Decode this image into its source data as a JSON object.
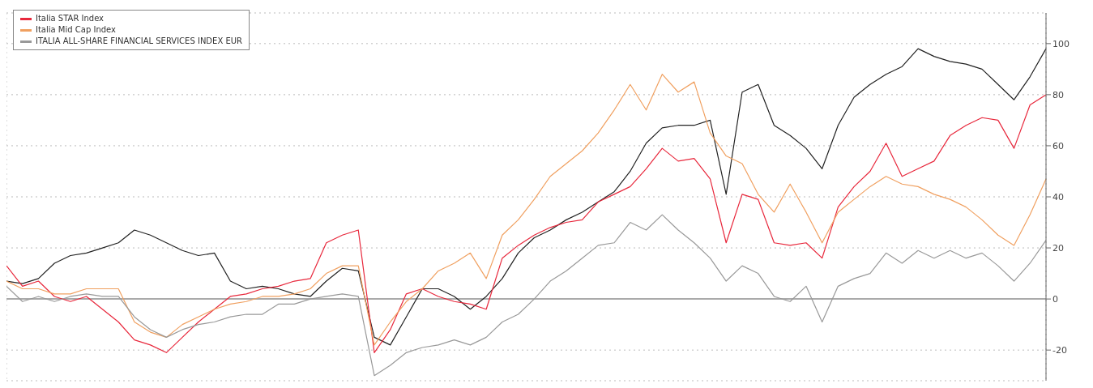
{
  "chart_data": {
    "type": "line",
    "categories": [
      null,
      null,
      null,
      null,
      null,
      null,
      null,
      null,
      null,
      null,
      null,
      null,
      null,
      null,
      null,
      null,
      null,
      null,
      null,
      null,
      null,
      null,
      null,
      null,
      null,
      null,
      null,
      null,
      null,
      null,
      null,
      null,
      null,
      null,
      null,
      null,
      null,
      null,
      null,
      null,
      null,
      null,
      null,
      null,
      null,
      null,
      null,
      null,
      null,
      null,
      null,
      null,
      null,
      null,
      null,
      null,
      null,
      null,
      null,
      null,
      null,
      null,
      null,
      null,
      null,
      null
    ],
    "series": [
      {
        "color": "#222222",
        "values": [
          7,
          6,
          8,
          14,
          17,
          18,
          20,
          22,
          27,
          25,
          22,
          19,
          17,
          18,
          7,
          4,
          5,
          4,
          2,
          1,
          7,
          12,
          11,
          -15,
          -18,
          -7,
          4,
          4,
          1,
          -4,
          1,
          8,
          18,
          24,
          27,
          31,
          34,
          38,
          42,
          50,
          61,
          67,
          68,
          68,
          70,
          41,
          81,
          84,
          68,
          64,
          59,
          51,
          68,
          79,
          84,
          88,
          91,
          98,
          95,
          93,
          92,
          90,
          84,
          78,
          87,
          98
        ]
      },
      {
        "name": "Italia STAR Index",
        "color": "#e8283c",
        "values": [
          13,
          5,
          7,
          1,
          -1,
          1,
          -4,
          -9,
          -16,
          -18,
          -21,
          -15,
          -9,
          -4,
          1,
          2,
          4,
          5,
          7,
          8,
          22,
          25,
          27,
          -21,
          -12,
          2,
          4,
          1,
          -1,
          -2,
          -4,
          16,
          21,
          25,
          28,
          30,
          31,
          38,
          41,
          44,
          51,
          59,
          54,
          55,
          47,
          22,
          41,
          39,
          22,
          21,
          22,
          16,
          36,
          44,
          50,
          61,
          48,
          51,
          54,
          64,
          68,
          71,
          70,
          59,
          76,
          80
        ]
      },
      {
        "name": "Italia Mid Cap Index",
        "color": "#f0a060",
        "values": [
          7,
          4,
          4,
          2,
          2,
          4,
          4,
          4,
          -9,
          -13,
          -15,
          -10,
          -7,
          -4,
          -2,
          -1,
          1,
          1,
          2,
          4,
          10,
          13,
          13,
          -18,
          -9,
          -1,
          4,
          11,
          14,
          18,
          8,
          25,
          31,
          39,
          48,
          53,
          58,
          65,
          74,
          84,
          74,
          88,
          81,
          85,
          65,
          56,
          53,
          41,
          34,
          45,
          34,
          22,
          34,
          39,
          44,
          48,
          45,
          44,
          41,
          39,
          36,
          31,
          25,
          21,
          33,
          47
        ]
      },
      {
        "name": "ITALIA ALL-SHARE FINANCIAL SERVICES INDEX EUR",
        "color": "#999999",
        "values": [
          5,
          -1,
          1,
          -1,
          1,
          2,
          1,
          1,
          -7,
          -12,
          -15,
          -12,
          -10,
          -9,
          -7,
          -6,
          -6,
          -2,
          -2,
          0,
          1,
          2,
          1,
          -30,
          -26,
          -21,
          -19,
          -18,
          -16,
          -18,
          -15,
          -9,
          -6,
          0,
          7,
          11,
          16,
          21,
          22,
          30,
          27,
          33,
          27,
          22,
          16,
          7,
          13,
          10,
          1,
          -1,
          5,
          -9,
          5,
          8,
          10,
          18,
          14,
          19,
          16,
          19,
          16,
          18,
          13,
          7,
          14,
          23
        ]
      }
    ],
    "ylim": [
      -32,
      112
    ],
    "yticks": [
      -20,
      0,
      20,
      40,
      60,
      80,
      100
    ],
    "grid": true,
    "legend": "top left",
    "tick_labels": "y",
    "line_style": "solid",
    "marker": "none",
    "ref_lines": [
      {
        "axis": "y",
        "value": 0,
        "color": "#aaaaaa"
      }
    ]
  }
}
